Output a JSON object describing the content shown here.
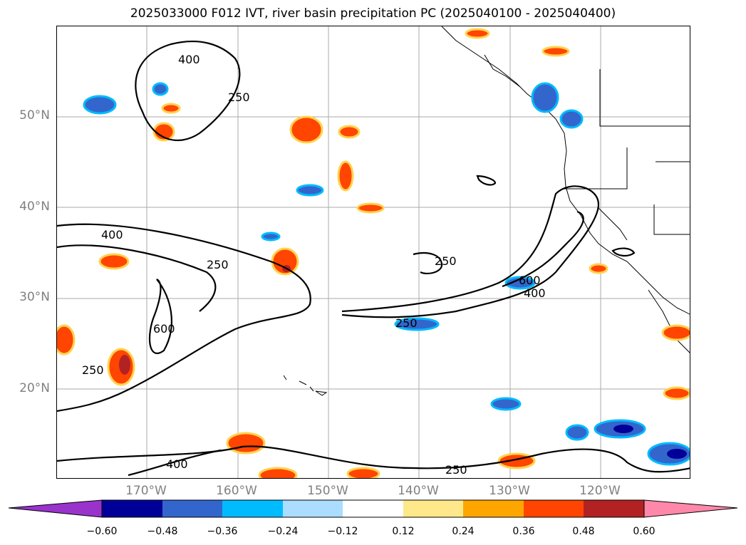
{
  "title": "2025033000 F012 IVT, river basin precipitation PC (2025040100 - 2025040400)",
  "lat_labels": [
    "50°N",
    "40°N",
    "30°N",
    "20°N"
  ],
  "lon_labels": [
    "170°W",
    "160°W",
    "150°W",
    "140°W",
    "130°W",
    "120°W"
  ],
  "contour_labels": {
    "ivt_400_a": "400",
    "ivt_250_a": "250",
    "ivt_400_b": "400",
    "ivt_250_b": "250",
    "ivt_600_a": "600",
    "ivt_250_c": "250",
    "ivt_250_d": "250",
    "ivt_250_e": "250",
    "ivt_600_b": "600",
    "ivt_400_c": "400",
    "ivt_400_d": "400",
    "ivt_250_f": "250"
  },
  "colorbar": {
    "ticks": [
      "−0.60",
      "−0.48",
      "−0.36",
      "−0.24",
      "−0.12",
      "0.12",
      "0.24",
      "0.36",
      "0.48",
      "0.60"
    ],
    "colors": [
      "#9933cc",
      "#000099",
      "#3366cc",
      "#00bbff",
      "#aaddff",
      "#ffffff",
      "#ffe88a",
      "#ffa500",
      "#ff4500",
      "#b22222",
      "#ff88aa"
    ]
  }
}
